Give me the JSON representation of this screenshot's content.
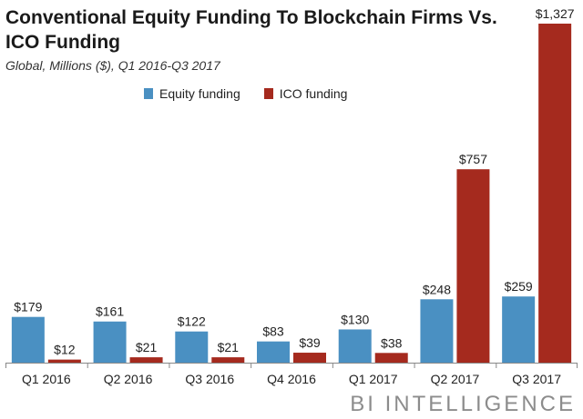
{
  "chart_data": {
    "type": "bar",
    "title": "Conventional Equity Funding To Blockchain Firms Vs. ICO Funding",
    "subtitle": "Global, Millions ($), Q1 2016-Q3 2017",
    "xlabel": "",
    "ylabel": "",
    "ylim": [
      0,
      1400
    ],
    "grid": false,
    "legend_position": "top-left",
    "categories": [
      "Q1 2016",
      "Q2 2016",
      "Q3 2016",
      "Q4 2016",
      "Q1 2017",
      "Q2 2017",
      "Q3 2017"
    ],
    "series": [
      {
        "name": "Equity funding",
        "color": "#4a90c2",
        "values": [
          179,
          161,
          122,
          83,
          130,
          248,
          259
        ],
        "labels": [
          "$179",
          "$161",
          "$122",
          "$83",
          "$130",
          "$248",
          "$259"
        ]
      },
      {
        "name": "ICO funding",
        "color": "#a52a1e",
        "values": [
          12,
          21,
          21,
          39,
          38,
          757,
          1327
        ],
        "labels": [
          "$12",
          "$21",
          "$21",
          "$39",
          "$38",
          "$757",
          "$1,327"
        ]
      }
    ]
  },
  "brand": "BI INTELLIGENCE"
}
